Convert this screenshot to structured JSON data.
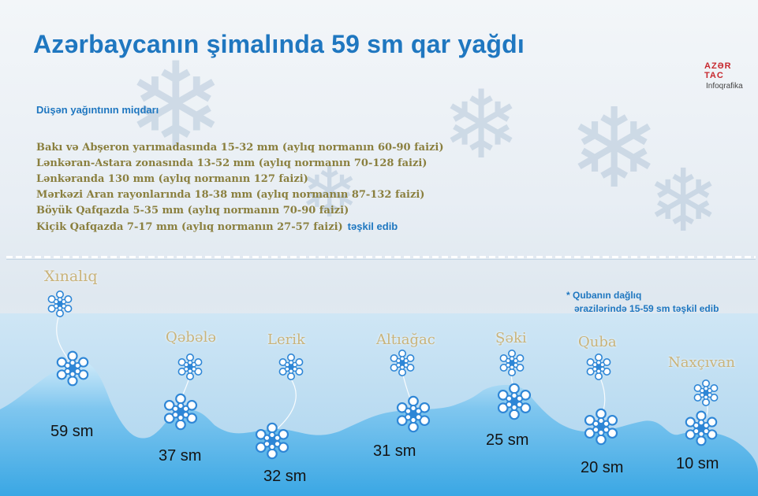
{
  "header": {
    "title": "Azərbaycanın şimalında 59 sm qar yağdı",
    "logo_top": "AZƏR TAC",
    "logo_bottom": "Infoqrafika"
  },
  "precipitation": {
    "subtitle": "Düşən yağıntının miqdarı",
    "items": [
      "Bakı və Abşeron yarımadasında 15-32 mm (aylıq normanın 60-90 faizi)",
      "Lənkəran-Astara zonasında 13-52 mm (aylıq normanın 70-128 faizi)",
      "Lənkəranda 130 mm (aylıq normanın 127 faizi)",
      "Mərkəzi Aran rayonlarında 18-38 mm (aylıq normanın 87-132 faizi)",
      "Böyük Qafqazda 5-35 mm (aylıq normanın 70-90 faizi)",
      "Kiçik Qafqazda 7-17 mm (aylıq normanın 27-57 faizi)"
    ],
    "last_item_suffix": "təşkil edib"
  },
  "snow_depth": {
    "note_line1": "* Qubanın dağlıq",
    "note_line2": "ərazilərində 15-59 sm təşkil edib",
    "locations": [
      {
        "name": "Xınalıq",
        "depth": "59 sm"
      },
      {
        "name": "Qəbələ",
        "depth": "37 sm"
      },
      {
        "name": "Lerik",
        "depth": "32 sm"
      },
      {
        "name": "Altıağac",
        "depth": "31 sm"
      },
      {
        "name": "Şəki",
        "depth": "25 sm"
      },
      {
        "name": "Quba",
        "depth": "20 sm"
      },
      {
        "name": "Naxçıvan",
        "depth": "10 sm"
      }
    ]
  },
  "colors": {
    "title": "#1f77c0",
    "text_gold": "#8a7f3e",
    "place_label": "#c9b37a",
    "mountain_fill": "#4fb3e8",
    "snowflake": "#2e86d6"
  },
  "icons": {
    "snowflake": "snowflake-icon"
  }
}
